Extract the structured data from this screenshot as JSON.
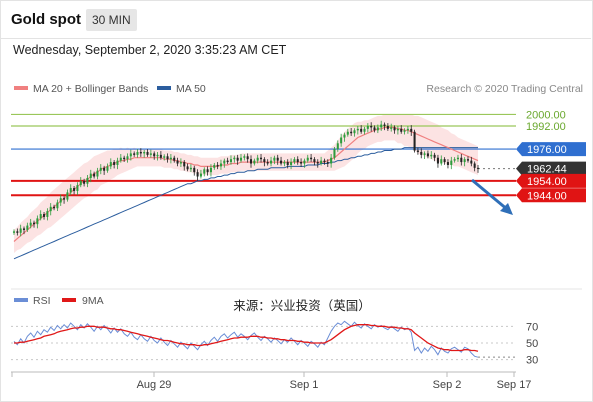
{
  "header": {
    "title": "Gold spot",
    "interval": "30 MIN"
  },
  "datetime": "Wednesday, September 2, 2020 3:35:23 AM CET",
  "copyright": "Research © 2020 Trading Central",
  "annotation": "来源：兴业投资（英国）",
  "colors": {
    "ma20": "#f08080",
    "bollinger": "#fbd9d9",
    "ma50": "#2b5d9e",
    "rsi": "#6b8ed6",
    "rsi_ma": "#e01818",
    "resistance": "#9ac75a",
    "support": "#e01414",
    "pivot": "#2f6fd0",
    "last": "#333333",
    "bull": "#2d9c3c",
    "bear": "#222222"
  },
  "chart_data": [
    {
      "type": "candlestick",
      "legend": [
        {
          "name": "MA 20 + Bollinger Bands",
          "color": "#f08080"
        },
        {
          "name": "MA 50",
          "color": "#2b5d9e"
        }
      ],
      "x_labels": [
        "Aug 29",
        "Sep 1",
        "Sep 2",
        "Sep 17"
      ],
      "y_range": [
        1895,
        2010
      ],
      "levels": [
        {
          "value": 2000.0,
          "label": "2000.00",
          "kind": "resistance"
        },
        {
          "value": 1992.0,
          "label": "1992.00",
          "kind": "resistance"
        },
        {
          "value": 1976.0,
          "label": "1976.00",
          "kind": "pivot"
        },
        {
          "value": 1962.44,
          "label": "1962.44",
          "kind": "last"
        },
        {
          "value": 1954.0,
          "label": "1954.00",
          "kind": "support"
        },
        {
          "value": 1944.0,
          "label": "1944.00",
          "kind": "support"
        }
      ],
      "close": [
        1919,
        1918,
        1921,
        1920,
        1923,
        1925,
        1924,
        1928,
        1931,
        1929,
        1933,
        1936,
        1935,
        1939,
        1942,
        1941,
        1946,
        1949,
        1947,
        1951,
        1954,
        1952,
        1956,
        1959,
        1957,
        1961,
        1963,
        1961,
        1964,
        1967,
        1965,
        1968,
        1970,
        1969,
        1971,
        1973,
        1972,
        1974,
        1973,
        1974,
        1972,
        1973,
        1971,
        1972,
        1970,
        1971,
        1969,
        1970,
        1968,
        1966,
        1967,
        1964,
        1962,
        1963,
        1960,
        1957,
        1959,
        1962,
        1960,
        1963,
        1965,
        1964,
        1966,
        1968,
        1967,
        1969,
        1970,
        1968,
        1970,
        1971,
        1969,
        1966,
        1968,
        1970,
        1969,
        1967,
        1966,
        1968,
        1970,
        1968,
        1966,
        1967,
        1965,
        1967,
        1969,
        1967,
        1966,
        1968,
        1970,
        1969,
        1967,
        1966,
        1968,
        1967,
        1966,
        1970,
        1976,
        1980,
        1984,
        1986,
        1988,
        1987,
        1989,
        1990,
        1988,
        1990,
        1992,
        1991,
        1989,
        1991,
        1993,
        1992,
        1990,
        1991,
        1989,
        1990,
        1988,
        1989,
        1990,
        1988,
        1975,
        1974,
        1972,
        1973,
        1971,
        1972,
        1970,
        1966,
        1969,
        1967,
        1965,
        1968,
        1969,
        1970,
        1967,
        1969,
        1968,
        1966,
        1963,
        1962.44
      ],
      "ma20": [
        1912,
        1914,
        1916,
        1918,
        1920,
        1922,
        1924,
        1926,
        1928,
        1930,
        1932,
        1934,
        1936,
        1938,
        1940,
        1942,
        1944,
        1946,
        1948,
        1950,
        1952,
        1954,
        1955,
        1957,
        1959,
        1960,
        1962,
        1963,
        1964,
        1965,
        1966,
        1967,
        1968,
        1968,
        1969,
        1969,
        1970,
        1970,
        1970,
        1970,
        1970,
        1970,
        1970,
        1970,
        1970,
        1969,
        1969,
        1969,
        1968,
        1968,
        1967,
        1967,
        1966,
        1966,
        1965,
        1965,
        1964,
        1964,
        1964,
        1964,
        1964,
        1964,
        1965,
        1965,
        1965,
        1966,
        1966,
        1966,
        1967,
        1967,
        1967,
        1967,
        1967,
        1967,
        1967,
        1967,
        1967,
        1967,
        1967,
        1967,
        1967,
        1967,
        1967,
        1967,
        1967,
        1967,
        1967,
        1967,
        1967,
        1967,
        1967,
        1967,
        1967,
        1967,
        1968,
        1969,
        1970,
        1972,
        1974,
        1976,
        1978,
        1980,
        1982,
        1984,
        1985,
        1986,
        1987,
        1988,
        1989,
        1990,
        1990,
        1991,
        1991,
        1991,
        1991,
        1990,
        1990,
        1989,
        1989,
        1988,
        1987,
        1986,
        1985,
        1984,
        1983,
        1982,
        1981,
        1980,
        1979,
        1978,
        1977,
        1976,
        1975,
        1974,
        1973,
        1972,
        1971,
        1970,
        1969,
        1968
      ],
      "bb_width": [
        8,
        8,
        9,
        9,
        9,
        10,
        10,
        10,
        11,
        11,
        11,
        12,
        12,
        12,
        12,
        12,
        12,
        12,
        12,
        12,
        12,
        12,
        12,
        12,
        12,
        12,
        11,
        11,
        11,
        10,
        10,
        9,
        9,
        8,
        8,
        7,
        7,
        6,
        6,
        6,
        6,
        6,
        6,
        6,
        6,
        6,
        6,
        6,
        6,
        6,
        6,
        6,
        6,
        6,
        6,
        6,
        6,
        6,
        6,
        6,
        6,
        6,
        6,
        6,
        6,
        6,
        6,
        6,
        6,
        6,
        6,
        6,
        6,
        6,
        6,
        6,
        6,
        6,
        6,
        6,
        6,
        6,
        6,
        6,
        6,
        6,
        6,
        6,
        6,
        6,
        6,
        6,
        6,
        6,
        7,
        8,
        9,
        10,
        11,
        12,
        12,
        12,
        12,
        11,
        10,
        10,
        9,
        9,
        9,
        9,
        9,
        9,
        9,
        9,
        9,
        10,
        10,
        11,
        11,
        12,
        12,
        13,
        13,
        13,
        13,
        13,
        13,
        13,
        12,
        12,
        12,
        11,
        11,
        10,
        10,
        10,
        10,
        10,
        10,
        10
      ],
      "ma50": [
        1900,
        1901,
        1902,
        1903,
        1904,
        1905,
        1906,
        1907,
        1908,
        1909,
        1910,
        1911,
        1912,
        1913,
        1914,
        1915,
        1916,
        1917,
        1918,
        1919,
        1920,
        1921,
        1922,
        1923,
        1924,
        1925,
        1926,
        1927,
        1928,
        1929,
        1930,
        1931,
        1932,
        1933,
        1934,
        1935,
        1936,
        1937,
        1938,
        1939,
        1940,
        1941,
        1942,
        1943,
        1944,
        1945,
        1946,
        1947,
        1948,
        1949,
        1950,
        1951,
        1952,
        1952,
        1953,
        1954,
        1954,
        1955,
        1955,
        1956,
        1956,
        1957,
        1957,
        1958,
        1958,
        1959,
        1959,
        1960,
        1960,
        1960,
        1961,
        1961,
        1961,
        1962,
        1962,
        1962,
        1962,
        1963,
        1963,
        1963,
        1963,
        1963,
        1964,
        1964,
        1964,
        1964,
        1964,
        1964,
        1965,
        1965,
        1965,
        1965,
        1966,
        1966,
        1966,
        1967,
        1967,
        1968,
        1968,
        1969,
        1969,
        1970,
        1970,
        1971,
        1971,
        1972,
        1972,
        1973,
        1973,
        1974,
        1974,
        1975,
        1975,
        1975,
        1976,
        1976,
        1976,
        1977,
        1977,
        1977,
        1977,
        1977,
        1977,
        1977,
        1977,
        1977,
        1977,
        1977,
        1977,
        1977,
        1977,
        1977,
        1977,
        1977,
        1977,
        1977,
        1977,
        1977,
        1977,
        1977
      ]
    },
    {
      "type": "line",
      "legend": [
        {
          "name": "RSI",
          "color": "#6b8ed6"
        },
        {
          "name": "9MA",
          "color": "#e01818"
        }
      ],
      "y_ticks": [
        70,
        50,
        30
      ],
      "y_range": [
        20,
        80
      ],
      "series": [
        {
          "name": "RSI",
          "values": [
            52,
            48,
            55,
            50,
            58,
            62,
            57,
            64,
            60,
            66,
            63,
            69,
            65,
            71,
            67,
            72,
            68,
            74,
            70,
            66,
            72,
            68,
            73,
            69,
            64,
            70,
            66,
            71,
            67,
            62,
            68,
            63,
            67,
            61,
            58,
            63,
            57,
            54,
            60,
            55,
            52,
            58,
            53,
            50,
            56,
            51,
            47,
            53,
            49,
            45,
            51,
            47,
            43,
            50,
            46,
            42,
            48,
            52,
            47,
            53,
            57,
            52,
            58,
            61,
            56,
            60,
            63,
            57,
            61,
            58,
            54,
            59,
            62,
            57,
            53,
            58,
            55,
            51,
            56,
            53,
            49,
            54,
            51,
            56,
            52,
            48,
            53,
            50,
            46,
            52,
            49,
            45,
            51,
            48,
            56,
            64,
            70,
            74,
            72,
            76,
            73,
            70,
            75,
            71,
            68,
            73,
            70,
            67,
            72,
            69,
            71,
            68,
            66,
            70,
            67,
            64,
            69,
            66,
            68,
            63,
            41,
            45,
            38,
            44,
            40,
            46,
            42,
            36,
            44,
            40,
            38,
            43,
            45,
            42,
            39,
            45,
            43,
            38,
            34,
            33
          ]
        },
        {
          "name": "9MA",
          "values": [
            50,
            50,
            51,
            51,
            52,
            53,
            54,
            55,
            56,
            58,
            59,
            60,
            61,
            63,
            64,
            65,
            66,
            67,
            68,
            68,
            69,
            69,
            70,
            70,
            70,
            69,
            69,
            69,
            68,
            67,
            67,
            66,
            66,
            65,
            64,
            63,
            62,
            61,
            60,
            59,
            58,
            57,
            56,
            55,
            54,
            53,
            53,
            52,
            51,
            50,
            49,
            49,
            48,
            48,
            48,
            47,
            47,
            48,
            48,
            49,
            50,
            51,
            52,
            53,
            54,
            55,
            56,
            56,
            57,
            57,
            57,
            58,
            58,
            58,
            57,
            57,
            56,
            56,
            55,
            55,
            54,
            54,
            53,
            53,
            53,
            52,
            52,
            51,
            51,
            50,
            50,
            50,
            50,
            50,
            52,
            54,
            57,
            60,
            63,
            66,
            68,
            70,
            71,
            72,
            72,
            72,
            72,
            71,
            71,
            70,
            70,
            70,
            69,
            69,
            69,
            68,
            68,
            67,
            67,
            66,
            62,
            59,
            56,
            53,
            50,
            48,
            46,
            44,
            43,
            42,
            42,
            41,
            41,
            41,
            41,
            42,
            42,
            41,
            41,
            40
          ]
        }
      ]
    }
  ]
}
